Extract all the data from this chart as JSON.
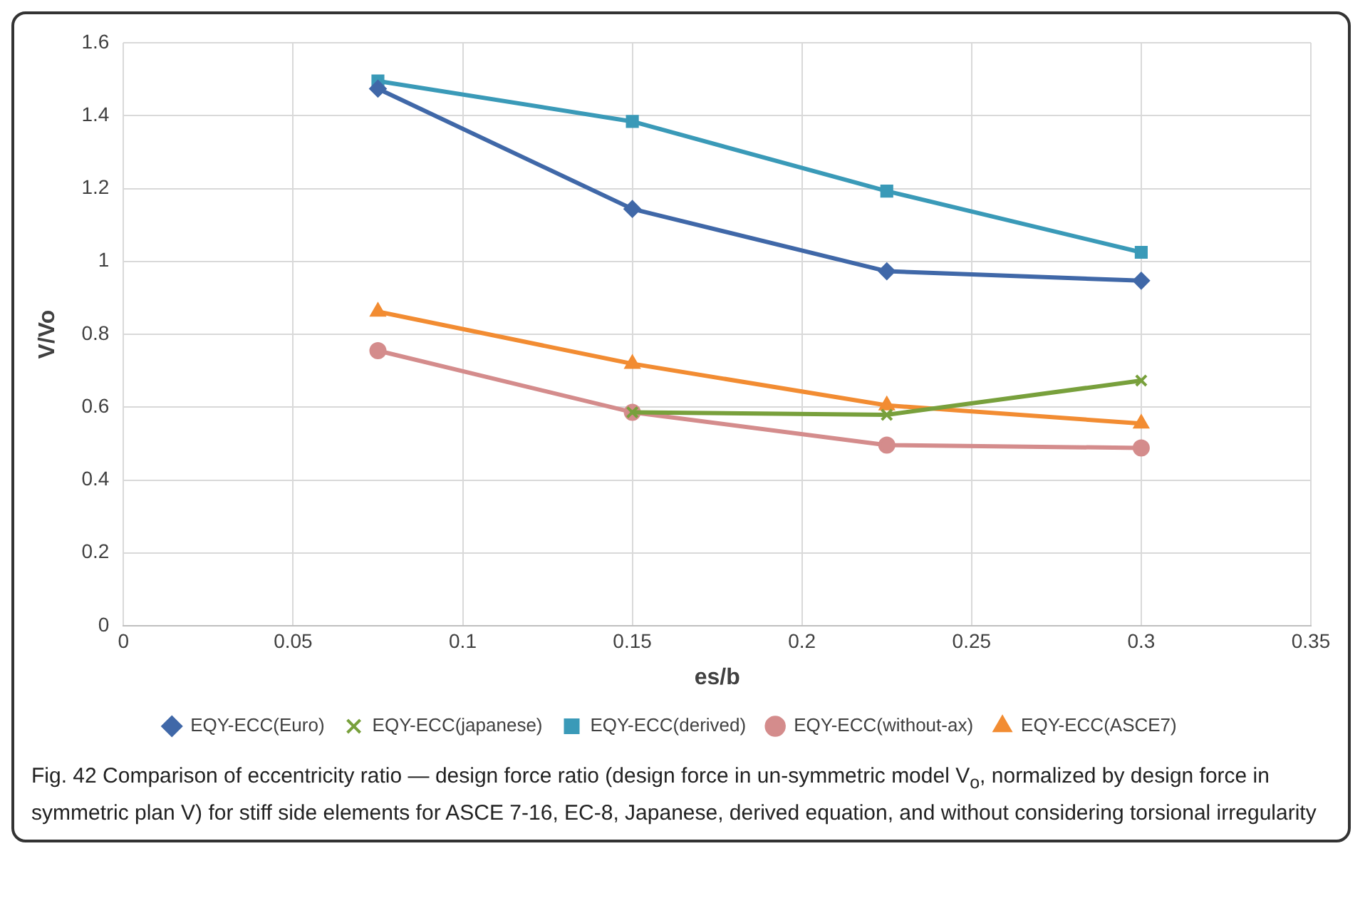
{
  "chart_data": {
    "type": "line",
    "xlabel": "es/b",
    "ylabel": "V/Vo",
    "x": [
      0.075,
      0.15,
      0.225,
      0.3
    ],
    "series": [
      {
        "name": "EQY-ECC(Euro)",
        "color": "#4068a8",
        "marker": "diamond",
        "values": [
          1.474,
          1.144,
          0.973,
          0.947
        ]
      },
      {
        "name": "EQY-ECC(japanese)",
        "color": "#78a03c",
        "marker": "cross",
        "values": [
          null,
          0.586,
          0.579,
          0.673
        ]
      },
      {
        "name": "EQY-ECC(derived)",
        "color": "#3a9ab8",
        "marker": "square",
        "values": [
          1.495,
          1.384,
          1.193,
          1.025
        ]
      },
      {
        "name": "EQY-ECC(without-ax)",
        "color": "#d48c8c",
        "marker": "circle",
        "values": [
          0.755,
          0.586,
          0.496,
          0.488
        ]
      },
      {
        "name": "EQY-ECC(ASCE7)",
        "color": "#f28c32",
        "marker": "triangle",
        "values": [
          0.862,
          0.719,
          0.605,
          0.555
        ]
      }
    ],
    "xlim": [
      0,
      0.35
    ],
    "xticks": [
      0,
      0.05,
      0.1,
      0.15,
      0.2,
      0.25,
      0.3,
      0.35
    ],
    "ylim": [
      0,
      1.6
    ],
    "yticks": [
      0,
      0.2,
      0.4,
      0.6,
      0.8,
      1,
      1.2,
      1.4,
      1.6
    ],
    "grid": true,
    "legend": "bottom",
    "line_style": "solid",
    "annotations": [
      "Fig. 42 Comparison of eccentricity ratio — design force ratio (design force in un-symmetric model V$_{o}$, normalized by design force in symmetric plan V) for stiff side elements for ASCE 7-16, EC-8, Japanese, derived equation, and without considering torsional irregularity"
    ]
  }
}
